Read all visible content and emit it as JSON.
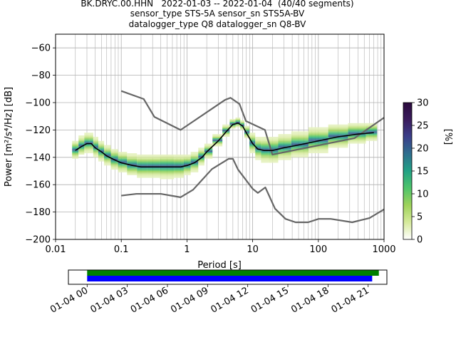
{
  "title_lines": [
    "BK.DRYC.00.HHN   2022-01-03 -- 2022-01-04  (40/40 segments)",
    "sensor_type STS-5A sensor_sn STS5A-BV",
    "datalogger_type Q8 datalogger_sn Q8-BV"
  ],
  "chart_data": {
    "type": "heatmap",
    "xlabel": "Period [s]",
    "ylabel": "Power [m²/s⁴/Hz] [dB]",
    "xscale": "log",
    "xlim": [
      0.01,
      1000
    ],
    "ylim": [
      -200,
      -50
    ],
    "x_ticks": [
      0.01,
      0.1,
      1,
      10,
      100,
      1000
    ],
    "x_tick_labels": [
      "0.01",
      "0.1",
      "1",
      "10",
      "100",
      "1000"
    ],
    "y_ticks": [
      -200,
      -180,
      -160,
      -140,
      -120,
      -100,
      -80,
      -60
    ],
    "y_tick_labels": [
      "−200",
      "−180",
      "−160",
      "−140",
      "−120",
      "−100",
      "−80",
      "−60"
    ],
    "grid": true,
    "colorbar": {
      "label": "[%]",
      "range": [
        0,
        30
      ],
      "ticks": [
        0,
        5,
        10,
        15,
        20,
        25,
        30
      ],
      "tick_labels": [
        "0",
        "5",
        "10",
        "15",
        "20",
        "25",
        "30"
      ],
      "colormap": [
        "#ffffff",
        "#d6ea9b",
        "#9ed25a",
        "#4ec46a",
        "#21a185",
        "#2e6f8e",
        "#3b3f8a",
        "#3a1b5c",
        "#2a0a3c"
      ]
    },
    "mean_psd": {
      "color": "#000000",
      "points": [
        [
          0.02,
          -135
        ],
        [
          0.025,
          -132
        ],
        [
          0.03,
          -130
        ],
        [
          0.035,
          -130
        ],
        [
          0.04,
          -133
        ],
        [
          0.05,
          -136
        ],
        [
          0.06,
          -139
        ],
        [
          0.08,
          -142
        ],
        [
          0.1,
          -144
        ],
        [
          0.15,
          -146
        ],
        [
          0.2,
          -147
        ],
        [
          0.3,
          -147
        ],
        [
          0.5,
          -147
        ],
        [
          0.8,
          -147
        ],
        [
          1,
          -146
        ],
        [
          1.3,
          -144
        ],
        [
          1.7,
          -140
        ],
        [
          2,
          -136
        ],
        [
          3,
          -128
        ],
        [
          4,
          -121
        ],
        [
          5,
          -116
        ],
        [
          6,
          -115
        ],
        [
          7,
          -117
        ],
        [
          8,
          -122
        ],
        [
          10,
          -130
        ],
        [
          12,
          -134
        ],
        [
          15,
          -135
        ],
        [
          20,
          -135
        ],
        [
          30,
          -133
        ],
        [
          50,
          -131
        ],
        [
          100,
          -128
        ],
        [
          200,
          -125
        ],
        [
          400,
          -123
        ],
        [
          700,
          -122
        ]
      ]
    },
    "nhnm": {
      "color": "#666666",
      "points": [
        [
          0.1,
          -91.5
        ],
        [
          0.22,
          -97.4
        ],
        [
          0.32,
          -110.5
        ],
        [
          0.8,
          -120
        ],
        [
          3.8,
          -98
        ],
        [
          4.6,
          -96.5
        ],
        [
          6.3,
          -101
        ],
        [
          7.9,
          -113.5
        ],
        [
          15.4,
          -120
        ],
        [
          20,
          -138
        ],
        [
          354.8,
          -126
        ],
        [
          1000,
          -111
        ]
      ]
    },
    "nlnm": {
      "color": "#666666",
      "points": [
        [
          0.1,
          -168
        ],
        [
          0.17,
          -166.7
        ],
        [
          0.4,
          -166.7
        ],
        [
          0.8,
          -169.2
        ],
        [
          1.24,
          -163.7
        ],
        [
          2.4,
          -148.6
        ],
        [
          4.3,
          -141.1
        ],
        [
          5,
          -141.1
        ],
        [
          6,
          -149
        ],
        [
          10,
          -163
        ],
        [
          12,
          -166
        ],
        [
          15.6,
          -162
        ],
        [
          21.9,
          -177.5
        ],
        [
          31.6,
          -185
        ],
        [
          45,
          -187.5
        ],
        [
          70,
          -187.5
        ],
        [
          101,
          -185
        ],
        [
          154,
          -185
        ],
        [
          328,
          -187.5
        ],
        [
          600,
          -184.4
        ],
        [
          1000,
          -178
        ]
      ]
    },
    "density_columns": [
      {
        "x": 0.02,
        "lo": -141,
        "hi": -128,
        "mean": -135
      },
      {
        "x": 0.025,
        "lo": -138,
        "hi": -124,
        "mean": -132
      },
      {
        "x": 0.03,
        "lo": -137,
        "hi": -123,
        "mean": -130
      },
      {
        "x": 0.035,
        "lo": -137,
        "hi": -123,
        "mean": -130
      },
      {
        "x": 0.04,
        "lo": -140,
        "hi": -126,
        "mean": -133
      },
      {
        "x": 0.05,
        "lo": -143,
        "hi": -129,
        "mean": -136
      },
      {
        "x": 0.06,
        "lo": -146,
        "hi": -132,
        "mean": -139
      },
      {
        "x": 0.08,
        "lo": -149,
        "hi": -134,
        "mean": -142
      },
      {
        "x": 0.1,
        "lo": -151,
        "hi": -136,
        "mean": -144
      },
      {
        "x": 0.15,
        "lo": -153,
        "hi": -137,
        "mean": -146
      },
      {
        "x": 0.2,
        "lo": -155,
        "hi": -138,
        "mean": -147
      },
      {
        "x": 0.3,
        "lo": -156,
        "hi": -139,
        "mean": -147
      },
      {
        "x": 0.5,
        "lo": -157,
        "hi": -139,
        "mean": -147
      },
      {
        "x": 0.8,
        "lo": -156,
        "hi": -139,
        "mean": -147
      },
      {
        "x": 1,
        "lo": -154,
        "hi": -139,
        "mean": -146
      },
      {
        "x": 1.3,
        "lo": -151,
        "hi": -137,
        "mean": -144
      },
      {
        "x": 1.7,
        "lo": -146,
        "hi": -134,
        "mean": -140
      },
      {
        "x": 2,
        "lo": -141,
        "hi": -131,
        "mean": -136
      },
      {
        "x": 3,
        "lo": -132,
        "hi": -124,
        "mean": -128
      },
      {
        "x": 4,
        "lo": -125,
        "hi": -117,
        "mean": -121
      },
      {
        "x": 5,
        "lo": -120,
        "hi": -113,
        "mean": -116
      },
      {
        "x": 6,
        "lo": -119,
        "hi": -112,
        "mean": -115
      },
      {
        "x": 7,
        "lo": -121,
        "hi": -114,
        "mean": -117
      },
      {
        "x": 8,
        "lo": -127,
        "hi": -118,
        "mean": -122
      },
      {
        "x": 10,
        "lo": -137,
        "hi": -123,
        "mean": -130
      },
      {
        "x": 12,
        "lo": -142,
        "hi": -126,
        "mean": -134
      },
      {
        "x": 15,
        "lo": -144,
        "hi": -126,
        "mean": -135
      },
      {
        "x": 20,
        "lo": -144,
        "hi": -125,
        "mean": -135
      },
      {
        "x": 30,
        "lo": -142,
        "hi": -124,
        "mean": -133
      },
      {
        "x": 50,
        "lo": -140,
        "hi": -122,
        "mean": -131
      },
      {
        "x": 100,
        "lo": -137,
        "hi": -119,
        "mean": -128
      },
      {
        "x": 200,
        "lo": -134,
        "hi": -117,
        "mean": -125
      },
      {
        "x": 400,
        "lo": -131,
        "hi": -116,
        "mean": -123
      },
      {
        "x": 700,
        "lo": -129,
        "hi": -116,
        "mean": -122
      }
    ]
  },
  "timeline": {
    "tick_labels": [
      "01-04 00",
      "01-04 03",
      "01-04 06",
      "01-04 09",
      "01-04 12",
      "01-04 15",
      "01-04 18",
      "01-04 21"
    ],
    "tick_hours": [
      0,
      3,
      6,
      9,
      12,
      15,
      18,
      21
    ],
    "xlim_hours": [
      -1.4,
      22.4
    ],
    "segments": [
      {
        "color": "#008000",
        "start_hours": 0,
        "end_hours": 21.8
      },
      {
        "color": "#0000ff",
        "start_hours": 0,
        "end_hours": 21.3
      }
    ]
  }
}
